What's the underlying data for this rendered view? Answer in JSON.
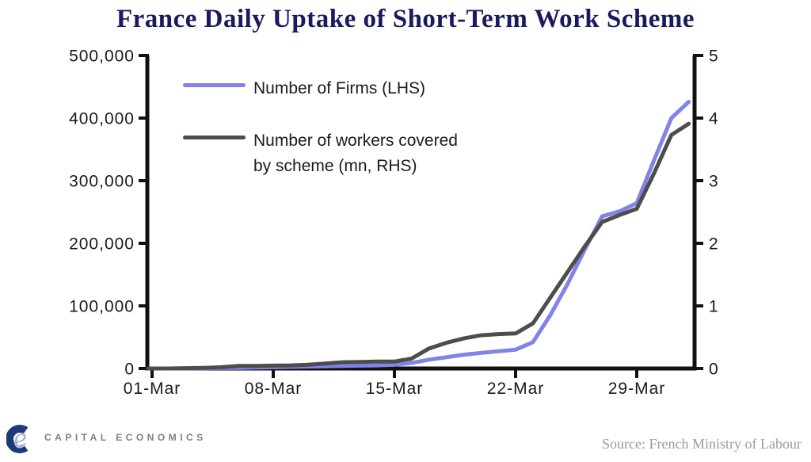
{
  "header": {
    "title": "France Daily Uptake of Short-Term Work Scheme",
    "title_color": "#1a1a5f"
  },
  "footer": {
    "logo_icon": "capital-economics-ce-monogram",
    "logo_text": "CAPITAL ECONOMICS",
    "logo_colors": {
      "c": "#1f3a78",
      "e": "#a9b3dc",
      "text": "#7f7f7f"
    },
    "source_text": "Source: French Ministry of Labour",
    "source_color": "#9b9b9b"
  },
  "chart_data": {
    "type": "line",
    "title": "France Daily Uptake of Short-Term Work Scheme",
    "grid": false,
    "legend_position": "top-left-inside",
    "background": "#ffffff",
    "axis_color": "#111111",
    "dates": [
      "01-Mar",
      "02-Mar",
      "03-Mar",
      "04-Mar",
      "05-Mar",
      "06-Mar",
      "07-Mar",
      "08-Mar",
      "09-Mar",
      "10-Mar",
      "11-Mar",
      "12-Mar",
      "13-Mar",
      "14-Mar",
      "15-Mar",
      "16-Mar",
      "17-Mar",
      "18-Mar",
      "19-Mar",
      "20-Mar",
      "21-Mar",
      "22-Mar",
      "23-Mar",
      "24-Mar",
      "25-Mar",
      "26-Mar",
      "27-Mar",
      "28-Mar",
      "29-Mar",
      "30-Mar",
      "31-Mar",
      "01-Apr"
    ],
    "x_tick_labels": [
      "01-Mar",
      "08-Mar",
      "15-Mar",
      "22-Mar",
      "29-Mar"
    ],
    "x_tick_day_indices": [
      0,
      7,
      14,
      21,
      28
    ],
    "left_axis": {
      "min": 0,
      "max": 500000,
      "tick_values": [
        0,
        100000,
        200000,
        300000,
        400000,
        500000
      ],
      "tick_labels": [
        "0",
        "100,000",
        "200,000",
        "300,000",
        "400,000",
        "500,000"
      ]
    },
    "right_axis": {
      "min": 0,
      "max": 5,
      "tick_values": [
        0,
        1,
        2,
        3,
        4,
        5
      ],
      "tick_labels": [
        "0",
        "1",
        "2",
        "3",
        "4",
        "5"
      ]
    },
    "series": [
      {
        "name": "Number of Firms (LHS)",
        "axis": "left",
        "color": "#8183e8",
        "values": [
          0,
          0,
          200,
          400,
          700,
          1000,
          1500,
          2000,
          2500,
          3000,
          3500,
          4000,
          4500,
          5000,
          6000,
          9000,
          14000,
          18000,
          22000,
          25000,
          27500,
          30000,
          42000,
          85000,
          135000,
          190000,
          243000,
          251000,
          264000,
          333000,
          400000,
          426000
        ]
      },
      {
        "name": "Number of workers covered\nby scheme (mn, RHS)",
        "axis": "right",
        "color": "#4d4d4d",
        "values": [
          0,
          0,
          0.005,
          0.01,
          0.02,
          0.04,
          0.04,
          0.045,
          0.05,
          0.06,
          0.08,
          0.1,
          0.105,
          0.11,
          0.11,
          0.16,
          0.32,
          0.41,
          0.48,
          0.53,
          0.55,
          0.56,
          0.72,
          1.13,
          1.54,
          1.95,
          2.34,
          2.45,
          2.55,
          3.12,
          3.73,
          3.91
        ]
      }
    ]
  }
}
